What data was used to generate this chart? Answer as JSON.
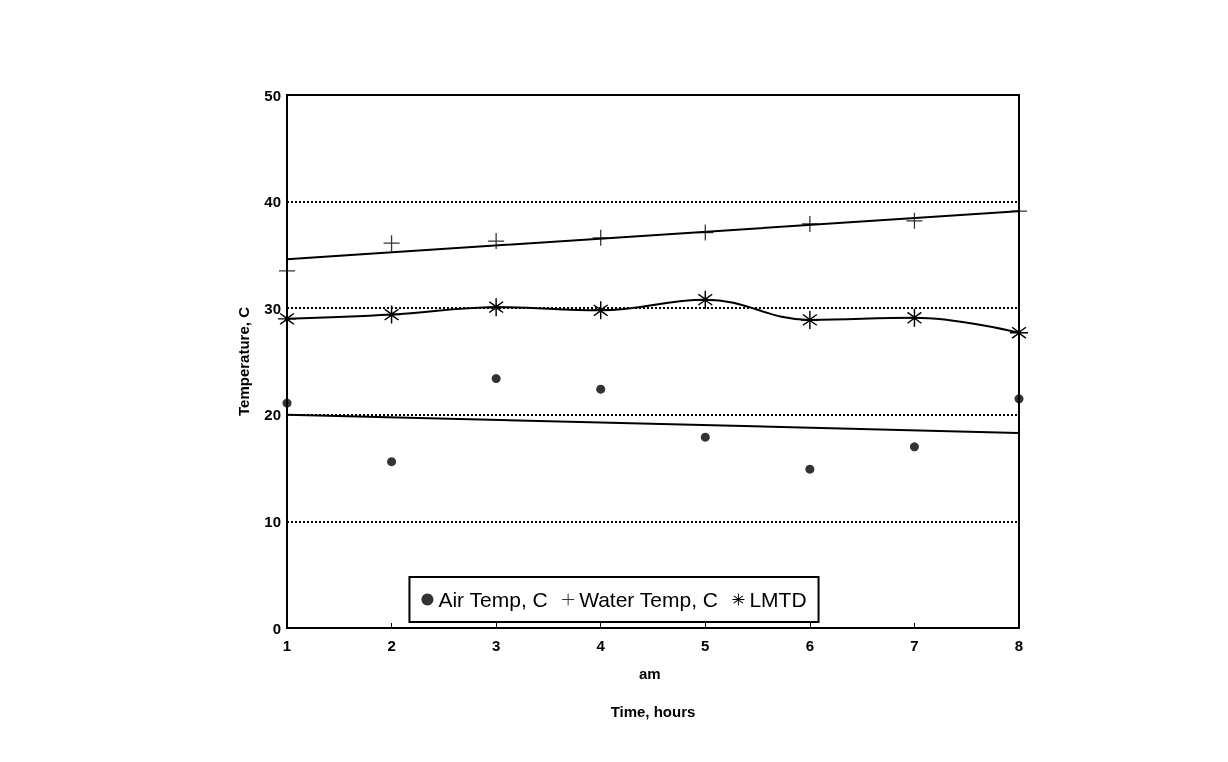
{
  "chart_data": {
    "type": "scatter",
    "xlabel": "Time, hours",
    "ylabel": "Temperature, C",
    "annotations": [
      "am"
    ],
    "x": [
      1,
      2,
      3,
      4,
      5,
      6,
      7,
      8
    ],
    "series": [
      {
        "name": "Air Temp, C",
        "type": "scatter",
        "marker": "circle",
        "color": "#000000",
        "values": [
          21.1,
          15.6,
          23.4,
          22.4,
          17.9,
          14.9,
          17.0,
          21.5
        ]
      },
      {
        "name": "Water Temp, C",
        "type": "scatter",
        "marker": "cross",
        "color": "#000000",
        "values": [
          33.5,
          36.1,
          36.3,
          36.6,
          37.1,
          37.9,
          38.2,
          39.1
        ]
      },
      {
        "name": "LMTD",
        "type": "line",
        "marker": "star",
        "color": "#000000",
        "values": [
          29.0,
          29.4,
          30.1,
          29.8,
          30.8,
          28.9,
          29.1,
          27.7
        ]
      },
      {
        "type": "line",
        "marker": "none",
        "color": "#000000",
        "values": [
          20.0,
          null,
          null,
          null,
          null,
          null,
          null,
          18.3
        ]
      },
      {
        "type": "line",
        "marker": "none",
        "color": "#000000",
        "values": [
          34.6,
          null,
          null,
          null,
          null,
          null,
          null,
          39.1
        ]
      }
    ],
    "xlim": [
      1,
      8
    ],
    "xticks": [
      1,
      2,
      3,
      4,
      5,
      6,
      7,
      8
    ],
    "ylim": [
      0,
      50
    ],
    "yticks": [
      0,
      10,
      20,
      30,
      40,
      50
    ],
    "grid": "y",
    "legend": "bottom"
  }
}
